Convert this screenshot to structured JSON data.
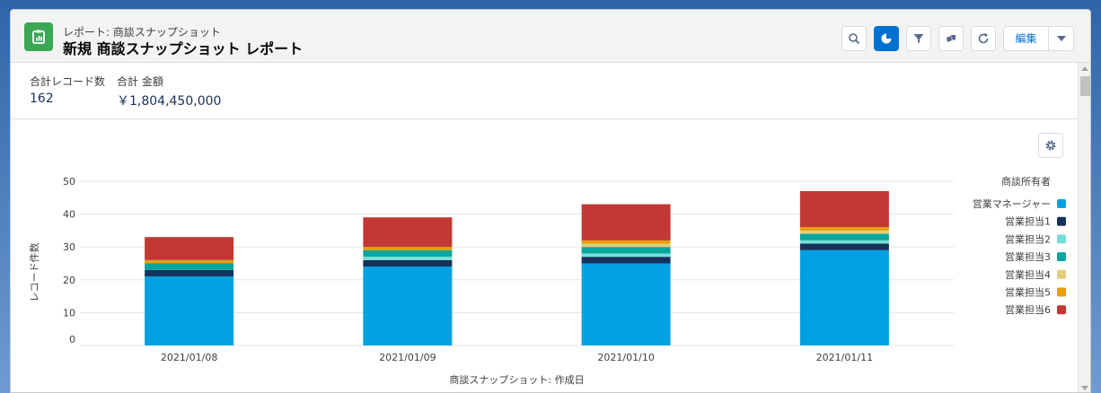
{
  "header": {
    "subtitle": "レポート: 商談スナップショット",
    "title": "新規 商談スナップショット レポート",
    "buttons": [
      "search-icon",
      "chart-icon",
      "filter-icon",
      "tags-icon",
      "refresh-icon"
    ],
    "edit_label": "編集"
  },
  "summary": {
    "record_count_label": "合計レコード数",
    "record_count_value": "162",
    "amount_label": "合計 金額",
    "amount_value": "￥1,804,450,000"
  },
  "chart_data": {
    "type": "bar",
    "stacked": true,
    "categories": [
      "2021/01/08",
      "2021/01/09",
      "2021/01/10",
      "2021/01/11"
    ],
    "xlabel": "商談スナップショット: 作成日",
    "ylabel": "レコード件数",
    "ylim": [
      0,
      50
    ],
    "yticks": [
      0,
      10,
      20,
      30,
      40,
      50
    ],
    "grid": true,
    "legend_title": "商談所有者",
    "legend_position": "right",
    "series": [
      {
        "name": "営業マネージャー",
        "color": "#00a1e0",
        "values": [
          21,
          24,
          25,
          29
        ]
      },
      {
        "name": "営業担当1",
        "color": "#16325c",
        "values": [
          2,
          2,
          2,
          2
        ]
      },
      {
        "name": "営業担当2",
        "color": "#76ded9",
        "values": [
          0,
          1,
          1,
          1
        ]
      },
      {
        "name": "営業担当3",
        "color": "#08a69e",
        "values": [
          2,
          2,
          2,
          2
        ]
      },
      {
        "name": "営業担当4",
        "color": "#e2ce7d",
        "values": [
          0,
          0,
          1,
          1
        ]
      },
      {
        "name": "営業担当5",
        "color": "#e69f00",
        "values": [
          1,
          1,
          1,
          1
        ]
      },
      {
        "name": "営業担当6",
        "color": "#c23934",
        "values": [
          7,
          9,
          11,
          11
        ]
      }
    ]
  }
}
